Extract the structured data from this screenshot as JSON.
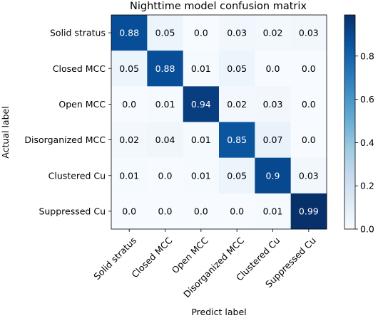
{
  "chart_data": {
    "type": "heatmap",
    "title": "Nighttime model confusion matrix",
    "xlabel": "Predict label",
    "ylabel": "Actual label",
    "x_categories": [
      "Solid stratus",
      "Closed MCC",
      "Open MCC",
      "Disorganized MCC",
      "Clustered Cu",
      "Suppressed Cu"
    ],
    "y_categories": [
      "Solid stratus",
      "Closed MCC",
      "Open MCC",
      "Disorganized MCC",
      "Clustered Cu",
      "Suppressed Cu"
    ],
    "values": [
      [
        0.88,
        0.05,
        0.0,
        0.03,
        0.02,
        0.03
      ],
      [
        0.05,
        0.88,
        0.01,
        0.05,
        0.0,
        0.0
      ],
      [
        0.0,
        0.01,
        0.94,
        0.02,
        0.03,
        0.0
      ],
      [
        0.02,
        0.04,
        0.01,
        0.85,
        0.07,
        0.0
      ],
      [
        0.01,
        0.0,
        0.01,
        0.05,
        0.9,
        0.03
      ],
      [
        0.0,
        0.0,
        0.0,
        0.0,
        0.01,
        0.99
      ]
    ],
    "cell_labels": [
      [
        "0.88",
        "0.05",
        "0.0",
        "0.03",
        "0.02",
        "0.03"
      ],
      [
        "0.05",
        "0.88",
        "0.01",
        "0.05",
        "0.0",
        "0.0"
      ],
      [
        "0.0",
        "0.01",
        "0.94",
        "0.02",
        "0.03",
        "0.0"
      ],
      [
        "0.02",
        "0.04",
        "0.01",
        "0.85",
        "0.07",
        "0.0"
      ],
      [
        "0.01",
        "0.0",
        "0.01",
        "0.05",
        "0.9",
        "0.03"
      ],
      [
        "0.0",
        "0.0",
        "0.0",
        "0.0",
        "0.01",
        "0.99"
      ]
    ],
    "colormap": "Blues",
    "colorbar": {
      "range": [
        0.0,
        0.99
      ],
      "ticks": [
        0.0,
        0.2,
        0.4,
        0.6,
        0.8
      ],
      "tick_labels": [
        "0.0",
        "0.2",
        "0.4",
        "0.6",
        "0.8"
      ]
    },
    "colors": {
      "low": "#f7fbff",
      "high": "#08306b"
    },
    "grid": false
  }
}
